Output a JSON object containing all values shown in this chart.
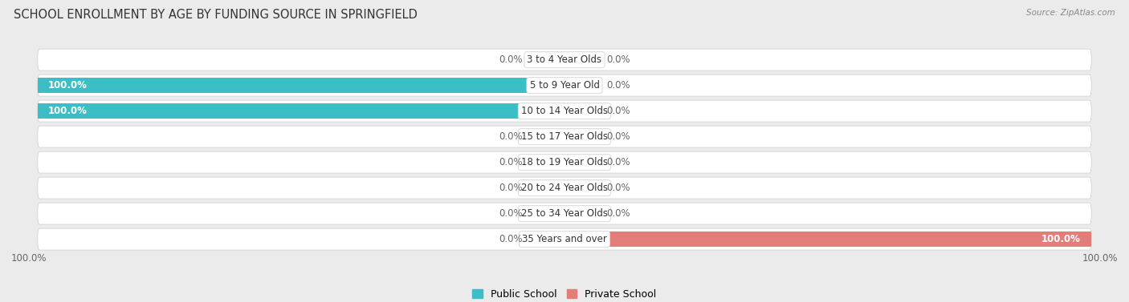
{
  "title": "SCHOOL ENROLLMENT BY AGE BY FUNDING SOURCE IN SPRINGFIELD",
  "source": "Source: ZipAtlas.com",
  "categories": [
    "3 to 4 Year Olds",
    "5 to 9 Year Old",
    "10 to 14 Year Olds",
    "15 to 17 Year Olds",
    "18 to 19 Year Olds",
    "20 to 24 Year Olds",
    "25 to 34 Year Olds",
    "35 Years and over"
  ],
  "public_values": [
    0.0,
    100.0,
    100.0,
    0.0,
    0.0,
    0.0,
    0.0,
    0.0
  ],
  "private_values": [
    0.0,
    0.0,
    0.0,
    0.0,
    0.0,
    0.0,
    0.0,
    100.0
  ],
  "public_color": "#3dbdc4",
  "private_color": "#e07e77",
  "public_stub_color": "#8ed0d5",
  "private_stub_color": "#f0aba6",
  "background_color": "#ebebeb",
  "row_color": "#ffffff",
  "title_fontsize": 10.5,
  "label_fontsize": 8.5,
  "value_fontsize": 8.5,
  "legend_fontsize": 9,
  "axis_label_left": "100.0%",
  "axis_label_right": "100.0%",
  "stub_size": 7.0,
  "xlim_left": -100,
  "xlim_right": 100
}
